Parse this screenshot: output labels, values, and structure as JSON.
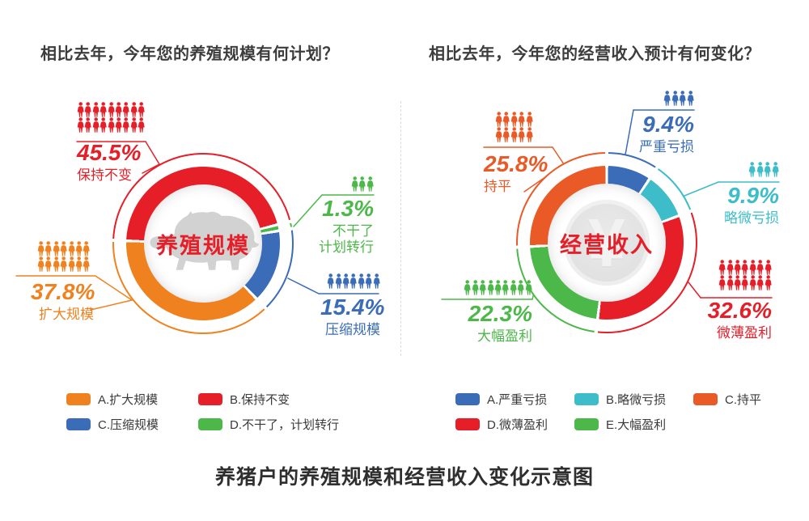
{
  "palette": {
    "red": "#e61e28",
    "orange": "#f0811f",
    "blue": "#3a6cb8",
    "green": "#4db84a",
    "cyan": "#3cbdc9",
    "orange_red": "#ea5a26",
    "gray": "#d2d2d2"
  },
  "caption": "养猪户的养殖规模和经营收入变化示意图",
  "left": {
    "title": "相比去年，今年您的养殖规模有何计划？",
    "center_label": "养殖规模",
    "labels": [
      {
        "pct": "45.5%",
        "name": "保持不变",
        "color": "red",
        "rows": [
          9,
          9
        ]
      },
      {
        "pct": "37.8%",
        "name": "扩大规模",
        "color": "orange",
        "rows": [
          7,
          7
        ]
      },
      {
        "pct": "1.3%",
        "name": "不干了",
        "name2": "计划转行",
        "color": "green",
        "rows": [
          3
        ]
      },
      {
        "pct": "15.4%",
        "name": "压缩规模",
        "color": "blue",
        "rows": [
          7
        ]
      }
    ],
    "legend": [
      {
        "label": "A.扩大规模",
        "color": "orange"
      },
      {
        "label": "B.保持不变",
        "color": "red"
      },
      {
        "label": "C.压缩规模",
        "color": "blue"
      },
      {
        "label": "D.不干了，计划转行",
        "color": "green"
      }
    ]
  },
  "right": {
    "title": "相比去年，今年您的经营收入预计有何变化？",
    "center_label": "经营收入",
    "coin_symbol": "¥",
    "labels": [
      {
        "pct": "25.8%",
        "name": "持平",
        "color": "orange_red",
        "rows": [
          5,
          5
        ]
      },
      {
        "pct": "9.4%",
        "name": "严重亏损",
        "color": "blue",
        "rows": [
          4
        ]
      },
      {
        "pct": "9.9%",
        "name": "略微亏损",
        "color": "cyan",
        "rows": [
          4
        ]
      },
      {
        "pct": "32.6%",
        "name": "微薄盈利",
        "color": "red",
        "rows": [
          7,
          7
        ]
      },
      {
        "pct": "22.3%",
        "name": "大幅盈利",
        "color": "green",
        "rows": [
          9
        ]
      }
    ],
    "legend": [
      {
        "label": "A.严重亏损",
        "color": "blue"
      },
      {
        "label": "B.略微亏损",
        "color": "cyan"
      },
      {
        "label": "C.持平",
        "color": "orange_red"
      },
      {
        "label": "D.微薄盈利",
        "color": "red"
      },
      {
        "label": "E.大幅盈利",
        "color": "green"
      }
    ]
  },
  "chart_data": [
    {
      "type": "pie",
      "subtype": "donut",
      "title": "相比去年，今年您的养殖规模有何计划？",
      "center_label": "养殖规模",
      "unit": "%",
      "start_angle_deg": 272,
      "segments": [
        {
          "label": "保持不变",
          "value": 45.5,
          "color": "red"
        },
        {
          "label": "不干了，计划转行",
          "value": 1.3,
          "color": "green"
        },
        {
          "label": "压缩规模",
          "value": 15.4,
          "color": "blue"
        },
        {
          "label": "扩大规模",
          "value": 37.8,
          "color": "orange"
        }
      ]
    },
    {
      "type": "pie",
      "subtype": "donut",
      "title": "相比去年，今年您的经营收入预计有何变化？",
      "center_label": "经营收入",
      "unit": "%",
      "start_angle_deg": 0,
      "segments": [
        {
          "label": "严重亏损",
          "value": 9.4,
          "color": "blue"
        },
        {
          "label": "略微亏损",
          "value": 9.9,
          "color": "cyan"
        },
        {
          "label": "微薄盈利",
          "value": 32.6,
          "color": "red"
        },
        {
          "label": "大幅盈利",
          "value": 22.3,
          "color": "green"
        },
        {
          "label": "持平",
          "value": 25.8,
          "color": "orange_red"
        }
      ]
    }
  ]
}
